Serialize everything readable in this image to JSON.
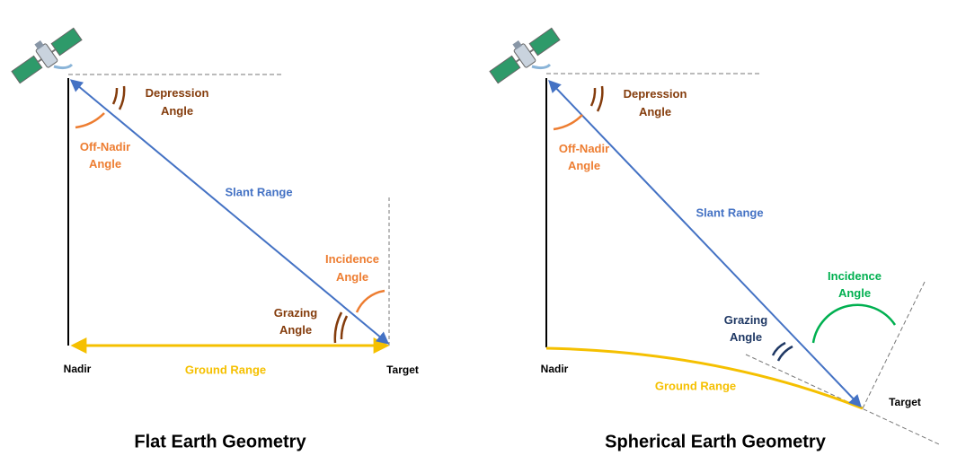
{
  "diagrams": [
    {
      "title": "Flat Earth Geometry",
      "depression_angle": [
        "Depression",
        "Angle"
      ],
      "off_nadir_angle": [
        "Off-Nadir",
        "Angle"
      ],
      "slant_range": "Slant Range",
      "incidence_angle": [
        "Incidence",
        "Angle"
      ],
      "grazing_angle": [
        "Grazing",
        "Angle"
      ],
      "nadir": "Nadir",
      "ground_range": "Ground Range",
      "target": "Target"
    },
    {
      "title": "Spherical Earth Geometry",
      "depression_angle": [
        "Depression",
        "Angle"
      ],
      "off_nadir_angle": [
        "Off-Nadir",
        "Angle"
      ],
      "slant_range": "Slant Range",
      "incidence_angle": [
        "Incidence",
        "Angle"
      ],
      "grazing_angle": [
        "Grazing",
        "Angle"
      ],
      "nadir": "Nadir",
      "ground_range": "Ground Range",
      "target": "Target"
    }
  ]
}
